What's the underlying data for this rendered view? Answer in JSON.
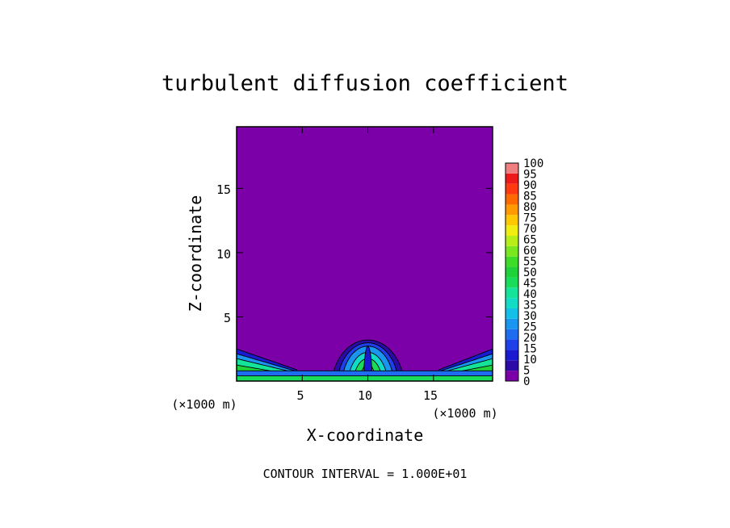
{
  "chart_data": {
    "type": "heatmap",
    "title": "turbulent diffusion coefficient",
    "xlabel": "X-coordinate",
    "ylabel": "Z-coordinate",
    "x_unit_label": "(×1000 m)",
    "z_unit_label": "(×1000 m)",
    "xlim": [
      0,
      19.5
    ],
    "ylim": [
      0,
      19.8
    ],
    "x_ticks": [
      5,
      10,
      15
    ],
    "y_ticks": [
      5,
      10,
      15
    ],
    "grid": false,
    "background_level": 0,
    "contour_interval_text": "CONTOUR INTERVAL = 1.000E+01",
    "colorbar": {
      "levels": [
        0,
        5,
        10,
        15,
        20,
        25,
        30,
        35,
        40,
        45,
        50,
        55,
        60,
        65,
        70,
        75,
        80,
        85,
        90,
        95,
        100
      ],
      "colors": [
        "#7b00a8",
        "#2b0aa8",
        "#1a1ad0",
        "#1f3fe8",
        "#1e6cf0",
        "#1a95f0",
        "#14c0e8",
        "#12dcc6",
        "#14e49a",
        "#18dc5a",
        "#1fd23a",
        "#3ddc28",
        "#7ae620",
        "#b8ee18",
        "#f0ee10",
        "#ffc800",
        "#ff9a00",
        "#ff6a00",
        "#ff3a10",
        "#ee1a1a",
        "#f08080"
      ]
    },
    "features": [
      {
        "name": "central thermal",
        "x_center": 10.0,
        "top_z": 3.2,
        "half_width": 2.7,
        "max_level": 55
      },
      {
        "name": "left surface layer",
        "x_range": [
          0,
          4.6
        ],
        "top_z": 2.5,
        "max_level": 50
      },
      {
        "name": "right surface layer",
        "x_range": [
          15.4,
          19.5
        ],
        "top_z": 2.5,
        "max_level": 50
      }
    ]
  }
}
